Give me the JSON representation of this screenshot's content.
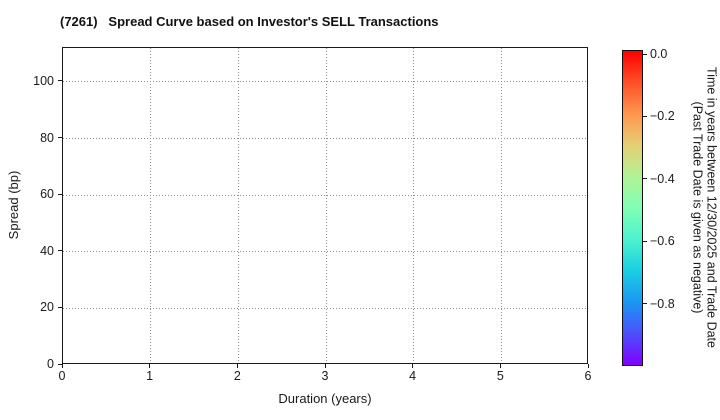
{
  "title": "(7261)   Spread Curve based on Investor's SELL Transactions",
  "chart_data": {
    "type": "scatter",
    "title": "(7261)   Spread Curve based on Investor's SELL Transactions",
    "xlabel": "Duration (years)",
    "ylabel": "Spread (bp)",
    "xlim": [
      0,
      6
    ],
    "ylim": [
      0,
      112
    ],
    "x_ticks": [
      0,
      1,
      2,
      3,
      4,
      5,
      6
    ],
    "x_tick_labels": [
      "0",
      "1",
      "2",
      "3",
      "4",
      "5",
      "6"
    ],
    "y_ticks": [
      0,
      20,
      40,
      60,
      80,
      100
    ],
    "y_tick_labels": [
      "0",
      "20",
      "40",
      "60",
      "80",
      "100"
    ],
    "grid": true,
    "grid_style": "dotted",
    "points": [],
    "colorbar": {
      "title_lines": [
        "Time in years between 12/30/2025 and Trade Date",
        "(Past Trade Date is given as negative)"
      ],
      "tick_values": [
        0.0,
        -0.2,
        -0.4,
        -0.6,
        -0.8
      ],
      "tick_labels": [
        "0.0",
        "−0.2",
        "−0.4",
        "−0.6",
        "−0.8"
      ],
      "value_top": 0.013,
      "value_bottom": -1.0,
      "colormap": "rainbow",
      "gradient_stops": [
        {
          "pos": 0.0,
          "color": "#ff0000"
        },
        {
          "pos": 0.1,
          "color": "#ff4f28"
        },
        {
          "pos": 0.2,
          "color": "#ff964f"
        },
        {
          "pos": 0.3,
          "color": "#e6ce74"
        },
        {
          "pos": 0.4,
          "color": "#b3f296"
        },
        {
          "pos": 0.5,
          "color": "#80ffb4"
        },
        {
          "pos": 0.6,
          "color": "#4df2ce"
        },
        {
          "pos": 0.7,
          "color": "#1acee3"
        },
        {
          "pos": 0.8,
          "color": "#1a96f2"
        },
        {
          "pos": 0.9,
          "color": "#4d4ffc"
        },
        {
          "pos": 1.0,
          "color": "#8000ff"
        }
      ]
    },
    "colors": {
      "background": "#ffffff",
      "spine": "#1a1a1a",
      "grid": "#8c8c8c",
      "text": "#1a1a1a"
    }
  }
}
